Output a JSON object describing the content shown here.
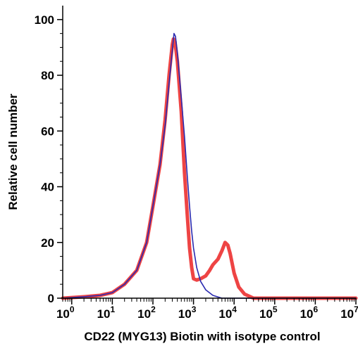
{
  "chart_data": {
    "type": "line",
    "title": "",
    "xlabel": "CD22 (MYG13) Biotin with isotype control",
    "ylabel": "Relative cell number",
    "x_scale": "log",
    "xlim": [
      0.6,
      10000000
    ],
    "ylim": [
      0,
      105
    ],
    "x_ticks": [
      1,
      10,
      100,
      1000,
      10000,
      100000,
      1000000,
      10000000
    ],
    "x_tick_labels": [
      {
        "base": "10",
        "exp": "0"
      },
      {
        "base": "10",
        "exp": "1"
      },
      {
        "base": "10",
        "exp": "2"
      },
      {
        "base": "10",
        "exp": "3"
      },
      {
        "base": "10",
        "exp": "4"
      },
      {
        "base": "10",
        "exp": "5"
      },
      {
        "base": "10",
        "exp": "6"
      },
      {
        "base": "10",
        "exp": "7"
      }
    ],
    "y_ticks": [
      0,
      20,
      40,
      60,
      80,
      100
    ],
    "y_tick_labels": [
      "0",
      "20",
      "40",
      "60",
      "80",
      "100"
    ],
    "grid": false,
    "legend": "none",
    "series": [
      {
        "color": "#ee4444",
        "x": [
          0.6,
          2,
          5,
          10,
          20,
          40,
          70,
          100,
          150,
          200,
          250,
          300,
          320,
          350,
          400,
          500,
          600,
          700,
          800,
          900,
          1000,
          1200,
          1500,
          2000,
          2500,
          3000,
          4000,
          5000,
          6000,
          7000,
          8000,
          10000,
          13000,
          18000,
          30000,
          100000,
          10000000
        ],
        "y": [
          0,
          0.5,
          1,
          2,
          5,
          10,
          20,
          33,
          48,
          64,
          80,
          91,
          93,
          92,
          85,
          67,
          45,
          30,
          18,
          11,
          7,
          6.5,
          7,
          8,
          10,
          12,
          14,
          17,
          20,
          19,
          16,
          9,
          4,
          1.5,
          0,
          0,
          0
        ]
      },
      {
        "color": "#2a2ab0",
        "x": [
          0.6,
          2,
          5,
          10,
          20,
          40,
          70,
          100,
          150,
          200,
          250,
          300,
          330,
          360,
          400,
          500,
          600,
          700,
          800,
          900,
          1000,
          1200,
          1500,
          2000,
          3000,
          5000,
          10000,
          100000,
          10000000
        ],
        "y": [
          0,
          0.5,
          1,
          2,
          5,
          10,
          20,
          33,
          48,
          62,
          77,
          89,
          95,
          94,
          88,
          72,
          58,
          44,
          33,
          24,
          18,
          11,
          6,
          3,
          1,
          0,
          0,
          0,
          0
        ]
      }
    ]
  }
}
